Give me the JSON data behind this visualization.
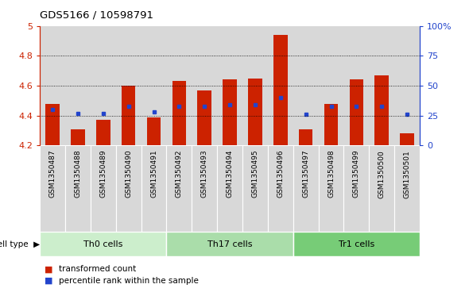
{
  "title": "GDS5166 / 10598791",
  "samples": [
    "GSM1350487",
    "GSM1350488",
    "GSM1350489",
    "GSM1350490",
    "GSM1350491",
    "GSM1350492",
    "GSM1350493",
    "GSM1350494",
    "GSM1350495",
    "GSM1350496",
    "GSM1350497",
    "GSM1350498",
    "GSM1350499",
    "GSM1350500",
    "GSM1350501"
  ],
  "transformed_counts": [
    4.48,
    4.31,
    4.37,
    4.6,
    4.39,
    4.63,
    4.57,
    4.64,
    4.65,
    4.94,
    4.31,
    4.48,
    4.64,
    4.67,
    4.28
  ],
  "percentile_ranks": [
    30,
    27,
    27,
    33,
    28,
    33,
    33,
    34,
    34,
    40,
    26,
    33,
    33,
    33,
    26
  ],
  "bar_color": "#cc2200",
  "dot_color": "#2244cc",
  "col_bg_color": "#d8d8d8",
  "ylim_left": [
    4.2,
    5.0
  ],
  "ylim_right": [
    0,
    100
  ],
  "yticks_left": [
    4.2,
    4.4,
    4.6,
    4.8,
    5.0
  ],
  "ytick_labels_left": [
    "4.2",
    "4.4",
    "4.6",
    "4.8",
    "5"
  ],
  "yticks_right": [
    0,
    25,
    50,
    75,
    100
  ],
  "ytick_labels_right": [
    "0",
    "25",
    "50",
    "75",
    "100%"
  ],
  "cell_types": [
    {
      "label": "Th0 cells",
      "start": 0,
      "end": 5,
      "color": "#cceecc"
    },
    {
      "label": "Th17 cells",
      "start": 5,
      "end": 10,
      "color": "#aaddaa"
    },
    {
      "label": "Tr1 cells",
      "start": 10,
      "end": 15,
      "color": "#77cc77"
    }
  ],
  "legend_items": [
    {
      "label": "transformed count",
      "color": "#cc2200"
    },
    {
      "label": "percentile rank within the sample",
      "color": "#2244cc"
    }
  ],
  "left_axis_color": "#cc2200",
  "right_axis_color": "#2244cc",
  "bar_width": 0.55,
  "base_value": 4.2
}
